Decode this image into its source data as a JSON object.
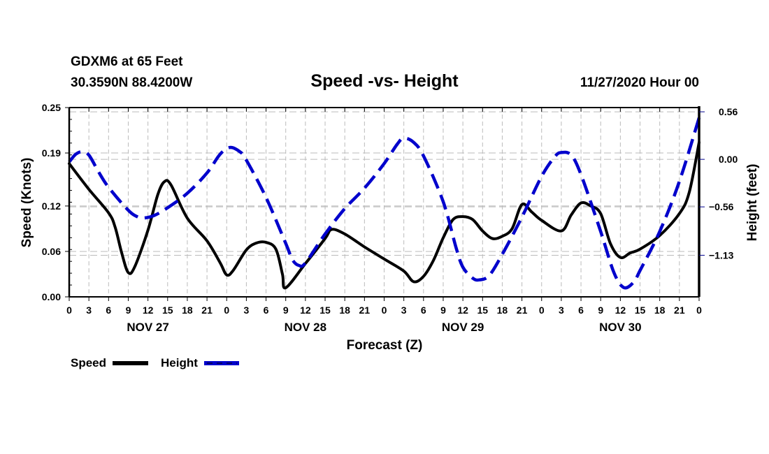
{
  "header": {
    "station": "GDXM6 at 65 Feet",
    "coords": "30.3590N 88.4200W",
    "title": "Speed -vs- Height",
    "datetime": "11/27/2020 Hour 00"
  },
  "colors": {
    "speed": "#000000",
    "height": "#0000cc",
    "grid": "#bbbbbb"
  },
  "legend": {
    "speed_label": "Speed",
    "height_label": "Height"
  },
  "chart_data": {
    "type": "line",
    "title": "Speed -vs- Height",
    "xlabel": "Forecast (Z)",
    "ylabel": "Speed (Knots)",
    "y2label": "Height (feet)",
    "xlim": [
      0,
      96
    ],
    "ylim": [
      0,
      0.25
    ],
    "y2lim": [
      -1.62,
      0.61
    ],
    "grid": true,
    "legend_position": "bottom-left",
    "x_tick_labels": [
      "0",
      "3",
      "6",
      "9",
      "12",
      "15",
      "18",
      "21",
      "0",
      "3",
      "6",
      "9",
      "12",
      "15",
      "18",
      "21",
      "0",
      "3",
      "6",
      "9",
      "12",
      "15",
      "18",
      "21",
      "0",
      "3",
      "6",
      "9",
      "12",
      "15",
      "18",
      "21",
      "0"
    ],
    "day_labels": [
      {
        "label": "NOV 27",
        "hour": 12
      },
      {
        "label": "NOV 28",
        "hour": 36
      },
      {
        "label": "NOV 29",
        "hour": 60
      },
      {
        "label": "NOV 30",
        "hour": 84
      }
    ],
    "y_ticks": [
      0.0,
      0.06,
      0.12,
      0.19,
      0.25
    ],
    "y_tick_labels": [
      "0.00",
      "0.06",
      "0.12",
      "0.19",
      "0.25"
    ],
    "y2_ticks": [
      -1.13,
      -0.56,
      0.0,
      0.56
    ],
    "y2_tick_labels": [
      "-1.13",
      "-0.56",
      "0.00",
      "0.56"
    ],
    "series": [
      {
        "name": "Speed",
        "axis": "left",
        "style": "solid",
        "x": [
          0,
          3,
          6,
          7,
          8,
          9,
          10,
          12,
          13.5,
          14.5,
          15.5,
          18,
          21,
          23,
          24,
          25,
          27,
          28.5,
          30,
          31.5,
          32.5,
          33,
          36,
          39,
          40,
          42,
          45,
          48,
          51,
          52.5,
          54,
          55.5,
          57,
          58.5,
          60,
          61.5,
          63,
          64.5,
          66,
          67.5,
          69,
          70.5,
          72,
          75,
          76.5,
          78,
          79.5,
          81,
          82.5,
          84,
          85.5,
          87,
          90,
          93,
          94.5,
          96
        ],
        "values": [
          0.176,
          0.142,
          0.111,
          0.092,
          0.058,
          0.032,
          0.04,
          0.088,
          0.135,
          0.152,
          0.148,
          0.104,
          0.074,
          0.045,
          0.029,
          0.035,
          0.062,
          0.071,
          0.072,
          0.063,
          0.03,
          0.012,
          0.044,
          0.077,
          0.089,
          0.083,
          0.066,
          0.05,
          0.034,
          0.02,
          0.027,
          0.048,
          0.078,
          0.102,
          0.106,
          0.102,
          0.087,
          0.077,
          0.08,
          0.09,
          0.122,
          0.112,
          0.101,
          0.087,
          0.108,
          0.124,
          0.12,
          0.11,
          0.07,
          0.052,
          0.058,
          0.063,
          0.081,
          0.11,
          0.138,
          0.204
        ]
      },
      {
        "name": "Height",
        "axis": "right",
        "style": "dashed",
        "x": [
          0,
          1,
          2,
          3,
          4.5,
          6,
          9,
          10.5,
          11.5,
          13,
          15,
          18,
          21,
          23,
          24.5,
          26,
          27,
          30,
          33,
          34,
          35,
          36,
          39,
          42,
          45,
          48,
          50,
          51,
          52.5,
          54,
          57,
          59,
          60,
          61.5,
          62.5,
          64,
          66,
          69,
          72,
          74,
          75,
          76.5,
          78,
          81,
          83,
          84.5,
          86,
          87,
          90,
          93,
          96
        ],
        "values": [
          -0.03,
          0.06,
          0.09,
          0.05,
          -0.15,
          -0.33,
          -0.6,
          -0.68,
          -0.69,
          -0.66,
          -0.57,
          -0.4,
          -0.16,
          0.06,
          0.14,
          0.09,
          -0.01,
          -0.45,
          -0.99,
          -1.18,
          -1.25,
          -1.22,
          -0.88,
          -0.58,
          -0.34,
          -0.05,
          0.18,
          0.25,
          0.2,
          0.04,
          -0.5,
          -1.05,
          -1.27,
          -1.4,
          -1.42,
          -1.37,
          -1.12,
          -0.68,
          -0.2,
          0.03,
          0.08,
          0.05,
          -0.18,
          -0.85,
          -1.33,
          -1.51,
          -1.45,
          -1.31,
          -0.85,
          -0.26,
          0.49
        ]
      }
    ]
  }
}
